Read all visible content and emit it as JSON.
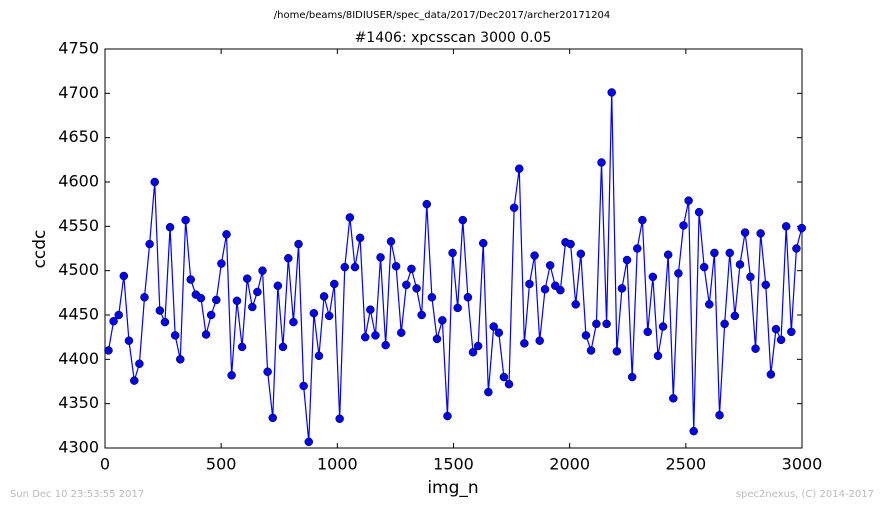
{
  "chart_data": {
    "type": "line",
    "suptitle": "/home/beams/8IDIUSER/spec_data/2017/Dec2017/archer20171204",
    "title": "#1406: xpcsscan 3000 0.05",
    "xlabel": "img_n",
    "ylabel": "ccdc",
    "footer_left": "Sun Dec 10 23:53:55 2017",
    "footer_right": "spec2nexus, (C) 2014-2017",
    "xlim": [
      0,
      3000
    ],
    "xticks": [
      0,
      500,
      1000,
      1500,
      2000,
      2500,
      3000
    ],
    "ylim": [
      4300,
      4750
    ],
    "yticks": [
      4300,
      4350,
      4400,
      4450,
      4500,
      4550,
      4600,
      4650,
      4700,
      4750
    ],
    "grid": false,
    "x": [
      15,
      37,
      59,
      81,
      103,
      126,
      148,
      170,
      192,
      214,
      236,
      258,
      280,
      302,
      324,
      347,
      369,
      391,
      413,
      435,
      457,
      479,
      501,
      523,
      545,
      568,
      590,
      612,
      634,
      656,
      678,
      700,
      722,
      744,
      766,
      789,
      811,
      833,
      855,
      877,
      899,
      921,
      943,
      965,
      987,
      1010,
      1032,
      1054,
      1076,
      1098,
      1120,
      1142,
      1164,
      1186,
      1208,
      1231,
      1253,
      1275,
      1297,
      1319,
      1341,
      1363,
      1385,
      1407,
      1429,
      1452,
      1474,
      1496,
      1518,
      1540,
      1562,
      1584,
      1606,
      1628,
      1650,
      1673,
      1695,
      1717,
      1739,
      1761,
      1783,
      1805,
      1827,
      1849,
      1871,
      1894,
      1916,
      1938,
      1960,
      1982,
      2004,
      2026,
      2048,
      2070,
      2092,
      2115,
      2137,
      2159,
      2181,
      2203,
      2225,
      2247,
      2269,
      2291,
      2313,
      2336,
      2358,
      2380,
      2402,
      2424,
      2446,
      2468,
      2490,
      2512,
      2534,
      2557,
      2579,
      2601,
      2623,
      2645,
      2667,
      2689,
      2711,
      2733,
      2755,
      2778,
      2800,
      2822,
      2844,
      2866,
      2888,
      2910,
      2932,
      2954,
      2976,
      2999
    ],
    "series": [
      {
        "color": "#0000ff",
        "values": [
          4410,
          4443,
          4450,
          4494,
          4421,
          4376,
          4395,
          4470,
          4530,
          4600,
          4455,
          4442,
          4549,
          4427,
          4400,
          4557,
          4490,
          4473,
          4469,
          4428,
          4450,
          4467,
          4508,
          4541,
          4382,
          4466,
          4414,
          4491,
          4459,
          4476,
          4500,
          4386,
          4334,
          4483,
          4414,
          4514,
          4442,
          4530,
          4370,
          4307,
          4452,
          4404,
          4471,
          4449,
          4485,
          4333,
          4504,
          4560,
          4504,
          4537,
          4425,
          4456,
          4427,
          4515,
          4416,
          4533,
          4505,
          4430,
          4484,
          4502,
          4480,
          4450,
          4575,
          4470,
          4423,
          4444,
          4336,
          4520,
          4458,
          4557,
          4470,
          4408,
          4415,
          4531,
          4363,
          4437,
          4430,
          4380,
          4372,
          4571,
          4615,
          4418,
          4485,
          4517,
          4421,
          4479,
          4506,
          4483,
          4478,
          4532,
          4530,
          4462,
          4519,
          4427,
          4410,
          4440,
          4622,
          4440,
          4701,
          4409,
          4480,
          4512,
          4380,
          4525,
          4557,
          4431,
          4493,
          4404,
          4437,
          4518,
          4356,
          4497,
          4551,
          4579,
          4319,
          4566,
          4504,
          4462,
          4520,
          4337,
          4440,
          4520,
          4449,
          4507,
          4543,
          4493,
          4412,
          4542,
          4484,
          4383,
          4434,
          4422,
          4550,
          4431,
          4525,
          4548
        ]
      }
    ]
  }
}
